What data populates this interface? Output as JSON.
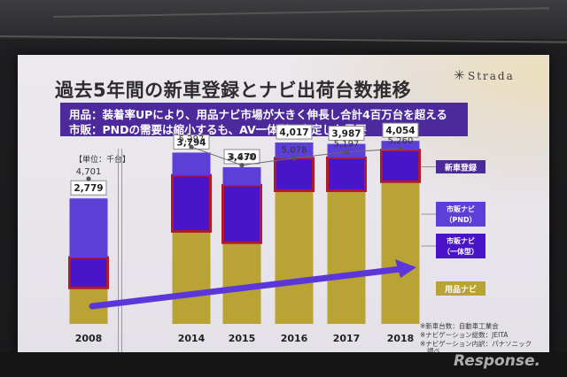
{
  "slide": {
    "title": "過去5年間の新車登録とナビ出荷台数推移",
    "brand": "Strada",
    "brand_mark": "✳",
    "summary": [
      "用品：装着率UPにより、用品ナビ市場が大きく伸長し合計4百万台を超える",
      "市販：PNDの需要は縮小するも、AV一体型は安定した需要"
    ],
    "unit_note": "【単位：千台】",
    "sources": [
      "※新車台数：自動車工業会",
      "※ナビゲーション総数：JEITA",
      "※ナビゲーション内訳：パナソニック",
      "調べ"
    ],
    "watermark": "Response."
  },
  "colors": {
    "accent_purple": "#4d2a9c",
    "pnd": "#5b3fd6",
    "integrated": "#4a14c9",
    "integrated_outline": "#b0192c",
    "accessory": "#b8a334",
    "trend_arrow": "#5b36d8"
  },
  "chart_data": {
    "type": "bar",
    "stacked": true,
    "categories": [
      "2008",
      "2014",
      "2015",
      "2016",
      "2017",
      "2018"
    ],
    "totals": [
      2779,
      3794,
      3470,
      4017,
      3987,
      4054
    ],
    "total_labels": [
      "2,779",
      "3,794",
      "3,470",
      "4,017",
      "3,987",
      "4,054"
    ],
    "series": [
      {
        "name": "用品ナビ",
        "color": "#b8a334",
        "values": [
          800,
          2050,
          1800,
          2950,
          2950,
          3150
        ]
      },
      {
        "name": "市販ナビ（一体型）",
        "color": "#4a14c9",
        "values": [
          670,
          1240,
          1270,
          720,
          730,
          700
        ]
      },
      {
        "name": "市販ナビ（PND）",
        "color": "#5b3fd6",
        "values": [
          1309,
          504,
          400,
          347,
          307,
          204
        ]
      }
    ],
    "legend": [
      {
        "text": "新車登録",
        "lines": [
          "新車登録"
        ]
      },
      {
        "text": "市販ナビ（PND）",
        "lines": [
          "市販ナビ",
          "（PND）"
        ]
      },
      {
        "text": "市販ナビ（一体型）",
        "lines": [
          "市販ナビ",
          "（一体型）"
        ]
      },
      {
        "text": "用品ナビ",
        "lines": [
          "用品ナビ"
        ]
      }
    ],
    "line_series": {
      "name": "新車登録",
      "values": [
        4701,
        5297,
        4938,
        5078,
        5197,
        5260
      ],
      "labels": [
        "4,701",
        "5,297",
        "4,938",
        "5,078",
        "5,197",
        "5,260"
      ]
    },
    "bar_ylim": [
      0,
      4900
    ],
    "line_ylim": [
      4500,
      5400
    ],
    "legend_placement": "right",
    "grid": false
  }
}
